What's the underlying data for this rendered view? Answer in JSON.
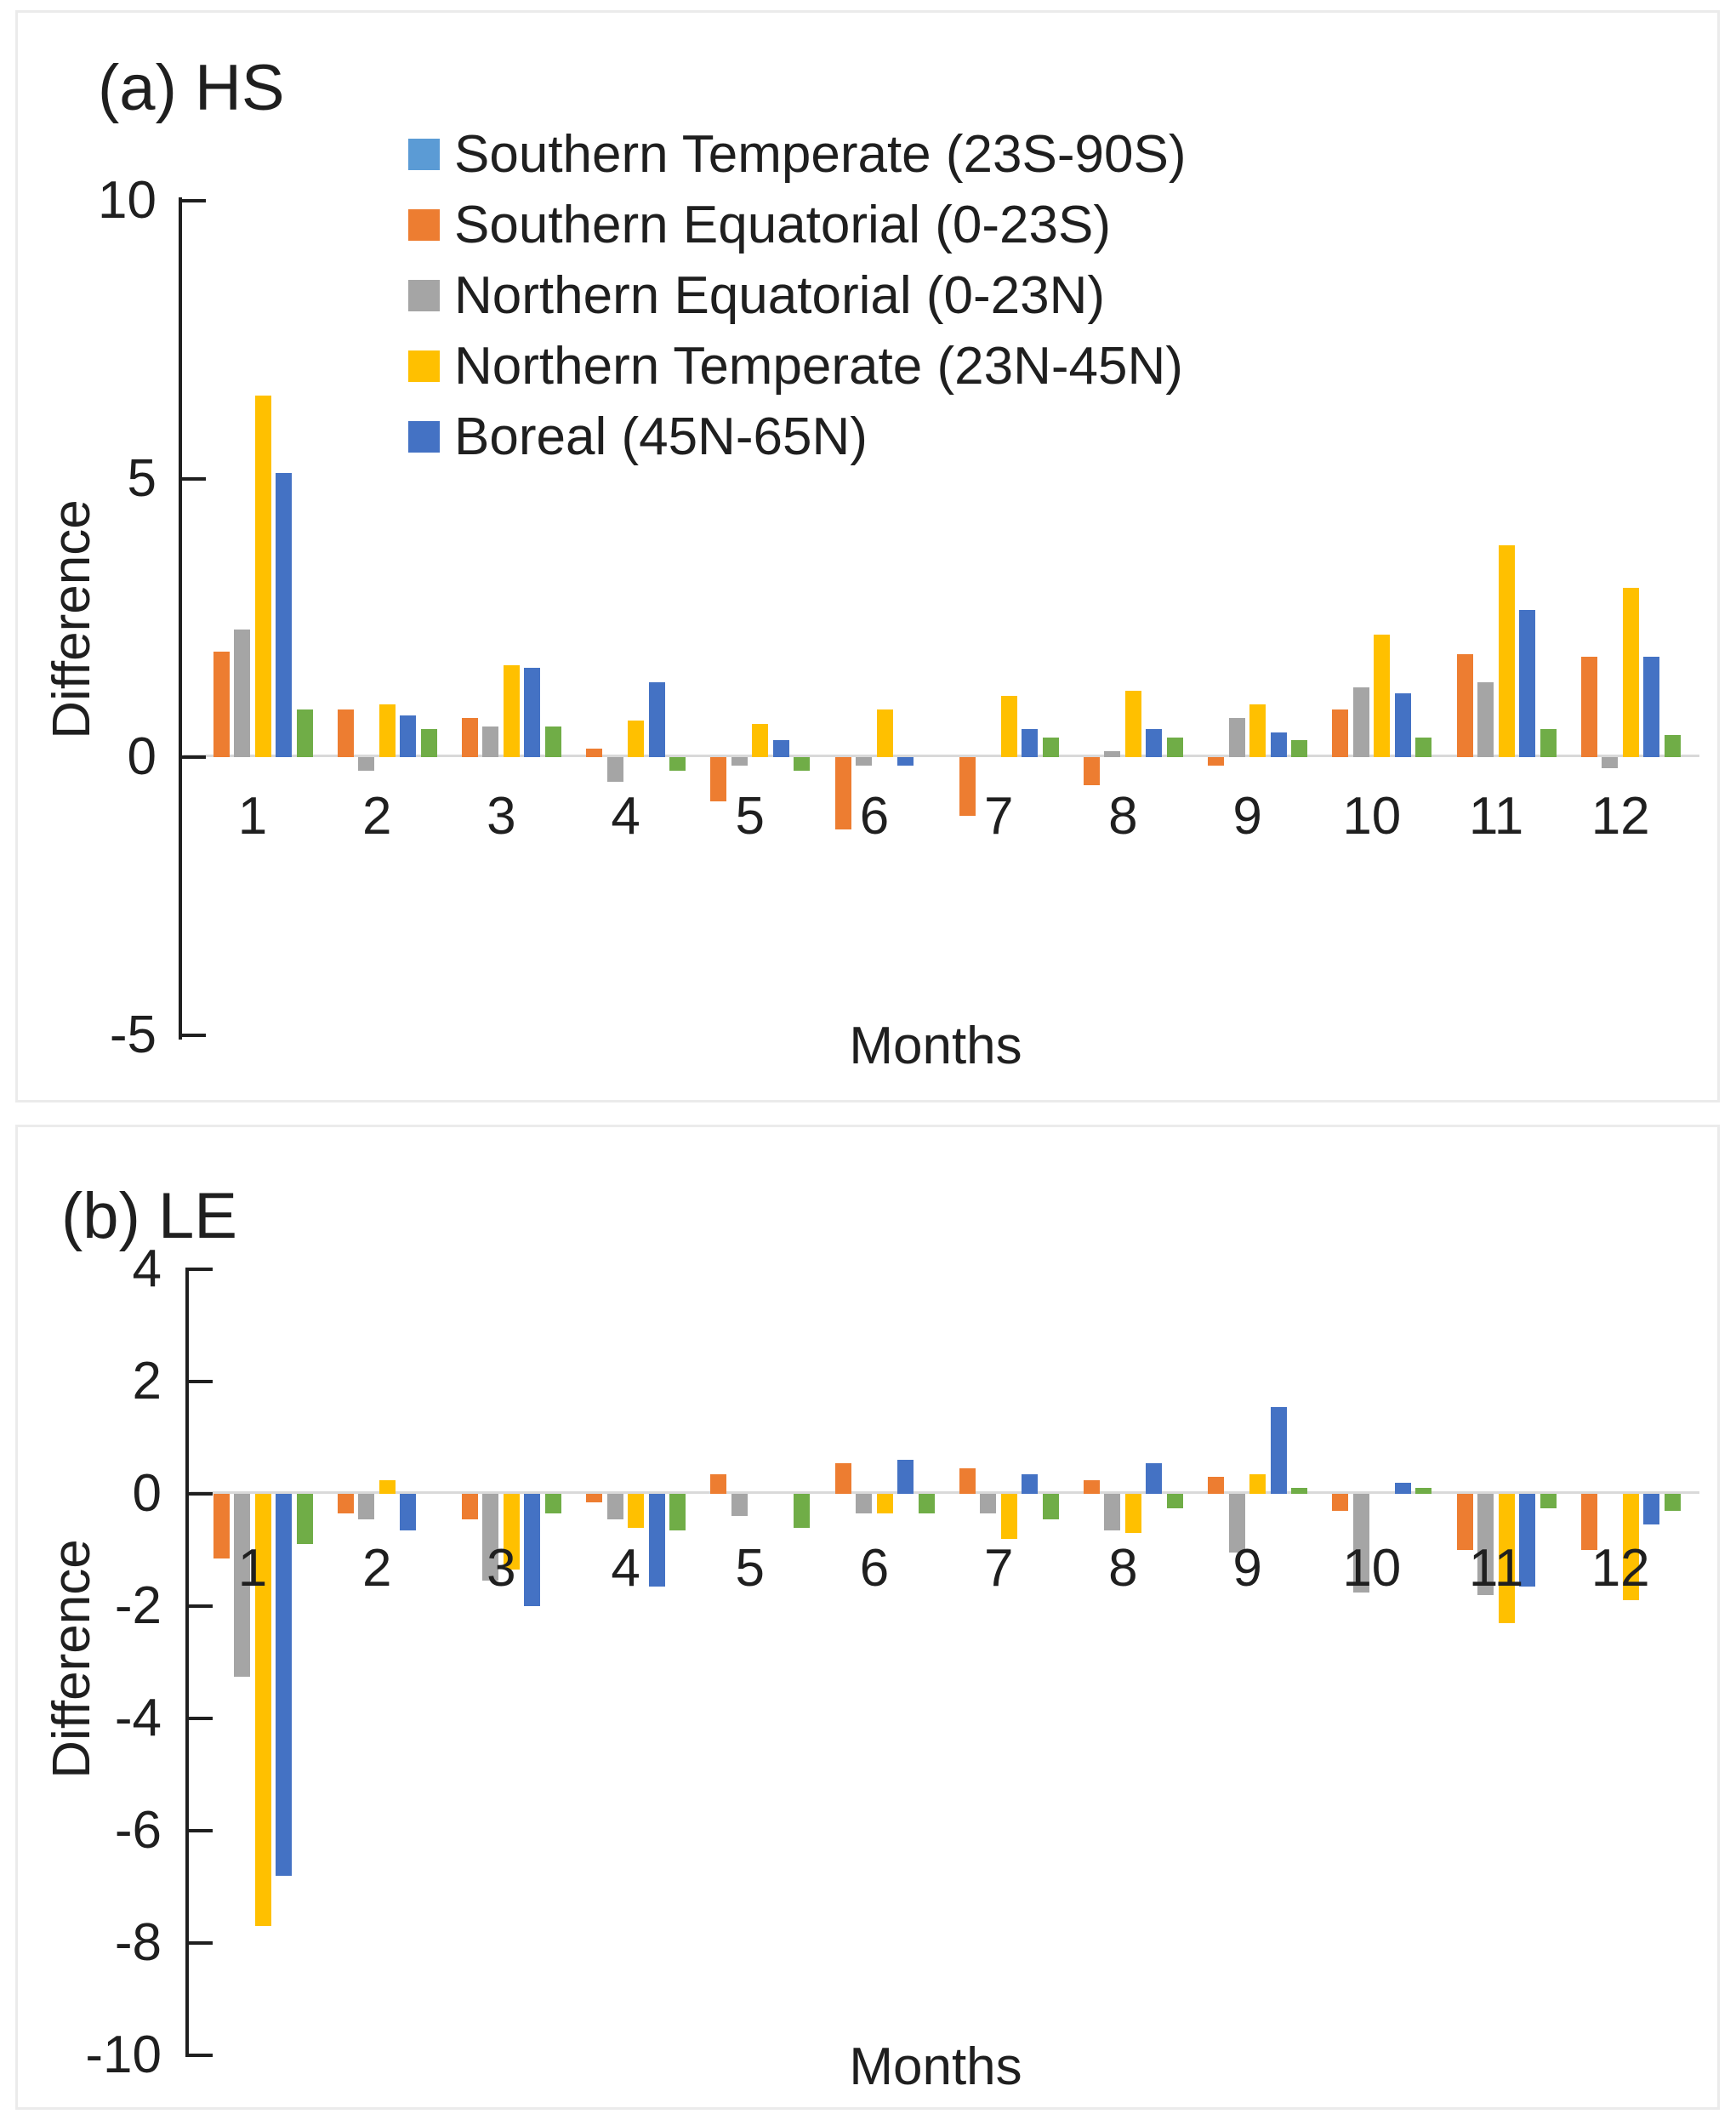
{
  "figure": {
    "background": "#ffffff",
    "panel_border_color": "#ebebeb"
  },
  "colors": {
    "southern_temperate": "#5B9BD5",
    "southern_equatorial": "#ED7D31",
    "northern_equatorial": "#A5A5A5",
    "northern_temperate": "#FFC000",
    "boreal": "#4472C4",
    "unlabeled_green": "#70AD47",
    "axis": "#1f1f1f",
    "gridline": "#d9d9d9"
  },
  "legend": {
    "entries": [
      {
        "label": "Southern Temperate (23S-90S)",
        "color": "#5B9BD5"
      },
      {
        "label": "Southern Equatorial (0-23S)",
        "color": "#ED7D31"
      },
      {
        "label": "Northern Equatorial (0-23N)",
        "color": "#A5A5A5"
      },
      {
        "label": "Northern Temperate (23N-45N)",
        "color": "#FFC000"
      },
      {
        "label": "Boreal (45N-65N)",
        "color": "#4472C4"
      }
    ]
  },
  "chart_data": [
    {
      "type": "bar",
      "id": "a",
      "title": "(a) HS",
      "ylabel": "Difference",
      "xlabel": "Months",
      "ylim": [
        -5,
        10
      ],
      "yticks": [
        10,
        5,
        0,
        -5
      ],
      "grid": "zero-line-only",
      "legend_position": "top-inside",
      "categories": [
        "1",
        "2",
        "3",
        "4",
        "5",
        "6",
        "7",
        "8",
        "9",
        "10",
        "11",
        "12"
      ],
      "series": [
        {
          "name": "Southern Temperate (23S-90S)",
          "color": "#5B9BD5",
          "in_legend": true,
          "values": [
            0,
            0,
            0,
            0,
            0,
            0,
            0,
            0,
            0,
            0,
            0,
            0
          ]
        },
        {
          "name": "Southern Equatorial (0-23S)",
          "color": "#ED7D31",
          "in_legend": true,
          "values": [
            1.9,
            0.85,
            0.7,
            0.15,
            -0.8,
            -1.3,
            -1.05,
            -0.5,
            -0.15,
            0.85,
            1.85,
            1.8
          ]
        },
        {
          "name": "Northern Equatorial (0-23N)",
          "color": "#A5A5A5",
          "in_legend": true,
          "values": [
            2.3,
            -0.25,
            0.55,
            -0.45,
            -0.15,
            -0.15,
            0,
            0.1,
            0.7,
            1.25,
            1.35,
            -0.2
          ]
        },
        {
          "name": "Northern Temperate (23N-45N)",
          "color": "#FFC000",
          "in_legend": true,
          "values": [
            6.5,
            0.95,
            1.65,
            0.65,
            0.6,
            0.85,
            1.1,
            1.2,
            0.95,
            2.2,
            3.8,
            3.05
          ]
        },
        {
          "name": "Boreal (45N-65N)",
          "color": "#4472C4",
          "in_legend": true,
          "values": [
            5.1,
            0.75,
            1.6,
            1.35,
            0.3,
            -0.15,
            0.5,
            0.5,
            0.45,
            1.15,
            2.65,
            1.8
          ]
        },
        {
          "name": "unlabeled green series",
          "color": "#70AD47",
          "in_legend": false,
          "values": [
            0.85,
            0.5,
            0.55,
            -0.25,
            -0.25,
            0,
            0.35,
            0.35,
            0.3,
            0.35,
            0.5,
            0.4
          ]
        }
      ]
    },
    {
      "type": "bar",
      "id": "b",
      "title": "(b) LE",
      "ylabel": "Difference",
      "xlabel": "Months",
      "ylim": [
        -10,
        4
      ],
      "yticks": [
        4,
        2,
        0,
        -2,
        -4,
        -6,
        -8,
        -10
      ],
      "grid": "zero-line-only",
      "legend_position": "none",
      "categories": [
        "1",
        "2",
        "3",
        "4",
        "5",
        "6",
        "7",
        "8",
        "9",
        "10",
        "11",
        "12"
      ],
      "series": [
        {
          "name": "Southern Temperate (23S-90S)",
          "color": "#5B9BD5",
          "in_legend": true,
          "values": [
            0,
            0,
            0,
            0,
            0,
            0,
            0,
            0,
            0,
            0,
            0,
            0
          ]
        },
        {
          "name": "Southern Equatorial (0-23S)",
          "color": "#ED7D31",
          "in_legend": true,
          "values": [
            -1.15,
            -0.35,
            -0.45,
            -0.15,
            0.35,
            0.55,
            0.45,
            0.25,
            0.3,
            -0.3,
            -1.0,
            -1.0
          ]
        },
        {
          "name": "Northern Equatorial (0-23N)",
          "color": "#A5A5A5",
          "in_legend": true,
          "values": [
            -3.25,
            -0.45,
            -1.55,
            -0.45,
            -0.4,
            -0.35,
            -0.35,
            -0.65,
            -1.05,
            -1.75,
            -1.8,
            0
          ]
        },
        {
          "name": "Northern Temperate (23N-45N)",
          "color": "#FFC000",
          "in_legend": true,
          "values": [
            -7.7,
            0.25,
            -1.35,
            -0.6,
            0,
            -0.35,
            -0.8,
            -0.7,
            0.35,
            0,
            -2.3,
            -1.9
          ]
        },
        {
          "name": "Boreal (45N-65N)",
          "color": "#4472C4",
          "in_legend": true,
          "values": [
            -6.8,
            -0.65,
            -2.0,
            -1.65,
            0,
            0.6,
            0.35,
            0.55,
            1.55,
            0.2,
            -1.65,
            -0.55
          ]
        },
        {
          "name": "unlabeled green series",
          "color": "#70AD47",
          "in_legend": false,
          "values": [
            -0.9,
            0,
            -0.35,
            -0.65,
            -0.6,
            -0.35,
            -0.45,
            -0.25,
            0.1,
            0.1,
            -0.25,
            -0.3
          ]
        }
      ]
    }
  ]
}
